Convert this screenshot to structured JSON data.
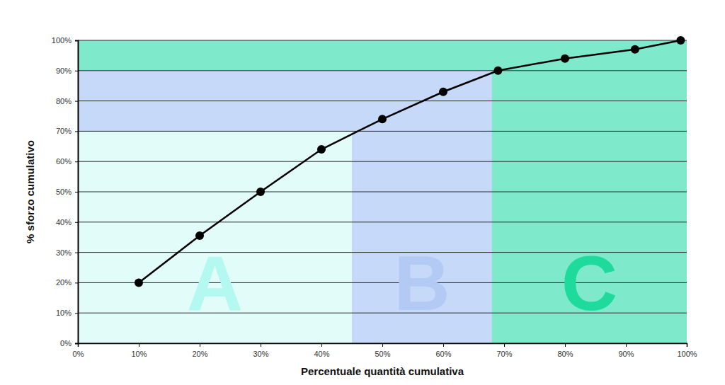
{
  "chart_data": {
    "type": "line",
    "x_label": "Percentuale quantità cumulativa",
    "y_label": "% sforzo cumulativo",
    "x": [
      10,
      20,
      30,
      40,
      50,
      60,
      69,
      80,
      91.5,
      99
    ],
    "values": [
      20,
      35.5,
      50,
      64,
      74,
      83,
      90,
      94,
      97,
      100
    ],
    "color": "#000000",
    "marker": "circle",
    "xlim": [
      0,
      100
    ],
    "ylim": [
      0,
      100
    ],
    "xticks": [
      {
        "value": 0,
        "label": "0%"
      },
      {
        "value": 10,
        "label": "10%"
      },
      {
        "value": 20,
        "label": "20%"
      },
      {
        "value": 30,
        "label": "30%"
      },
      {
        "value": 40,
        "label": "40%"
      },
      {
        "value": 50,
        "label": "50%"
      },
      {
        "value": 60,
        "label": "60%"
      },
      {
        "value": 70,
        "label": "70%"
      },
      {
        "value": 80,
        "label": "80%"
      },
      {
        "value": 90,
        "label": "90%"
      },
      {
        "value": 100,
        "label": "100%"
      }
    ],
    "yticks": [
      {
        "value": 0,
        "label": "0%"
      },
      {
        "value": 10,
        "label": "10%"
      },
      {
        "value": 20,
        "label": "20%"
      },
      {
        "value": 30,
        "label": "30%"
      },
      {
        "value": 40,
        "label": "40%"
      },
      {
        "value": 50,
        "label": "50%"
      },
      {
        "value": 60,
        "label": "60%"
      },
      {
        "value": 70,
        "label": "70%"
      },
      {
        "value": 80,
        "label": "80%"
      },
      {
        "value": 90,
        "label": "90%"
      },
      {
        "value": 100,
        "label": "100%"
      }
    ],
    "grid": true,
    "regions": [
      {
        "label": "A",
        "x0": 0,
        "x1": 45,
        "y0": 0,
        "y1": 70,
        "color": "#e1fcf9"
      },
      {
        "label": "B",
        "x0": 0,
        "x1": 68,
        "y0": 0,
        "y1": 90,
        "color": "#c6d9f8"
      },
      {
        "label": "C",
        "x0": 0,
        "x1": 100,
        "y0": 0,
        "y1": 100,
        "color": "#7fe9cc"
      }
    ]
  }
}
